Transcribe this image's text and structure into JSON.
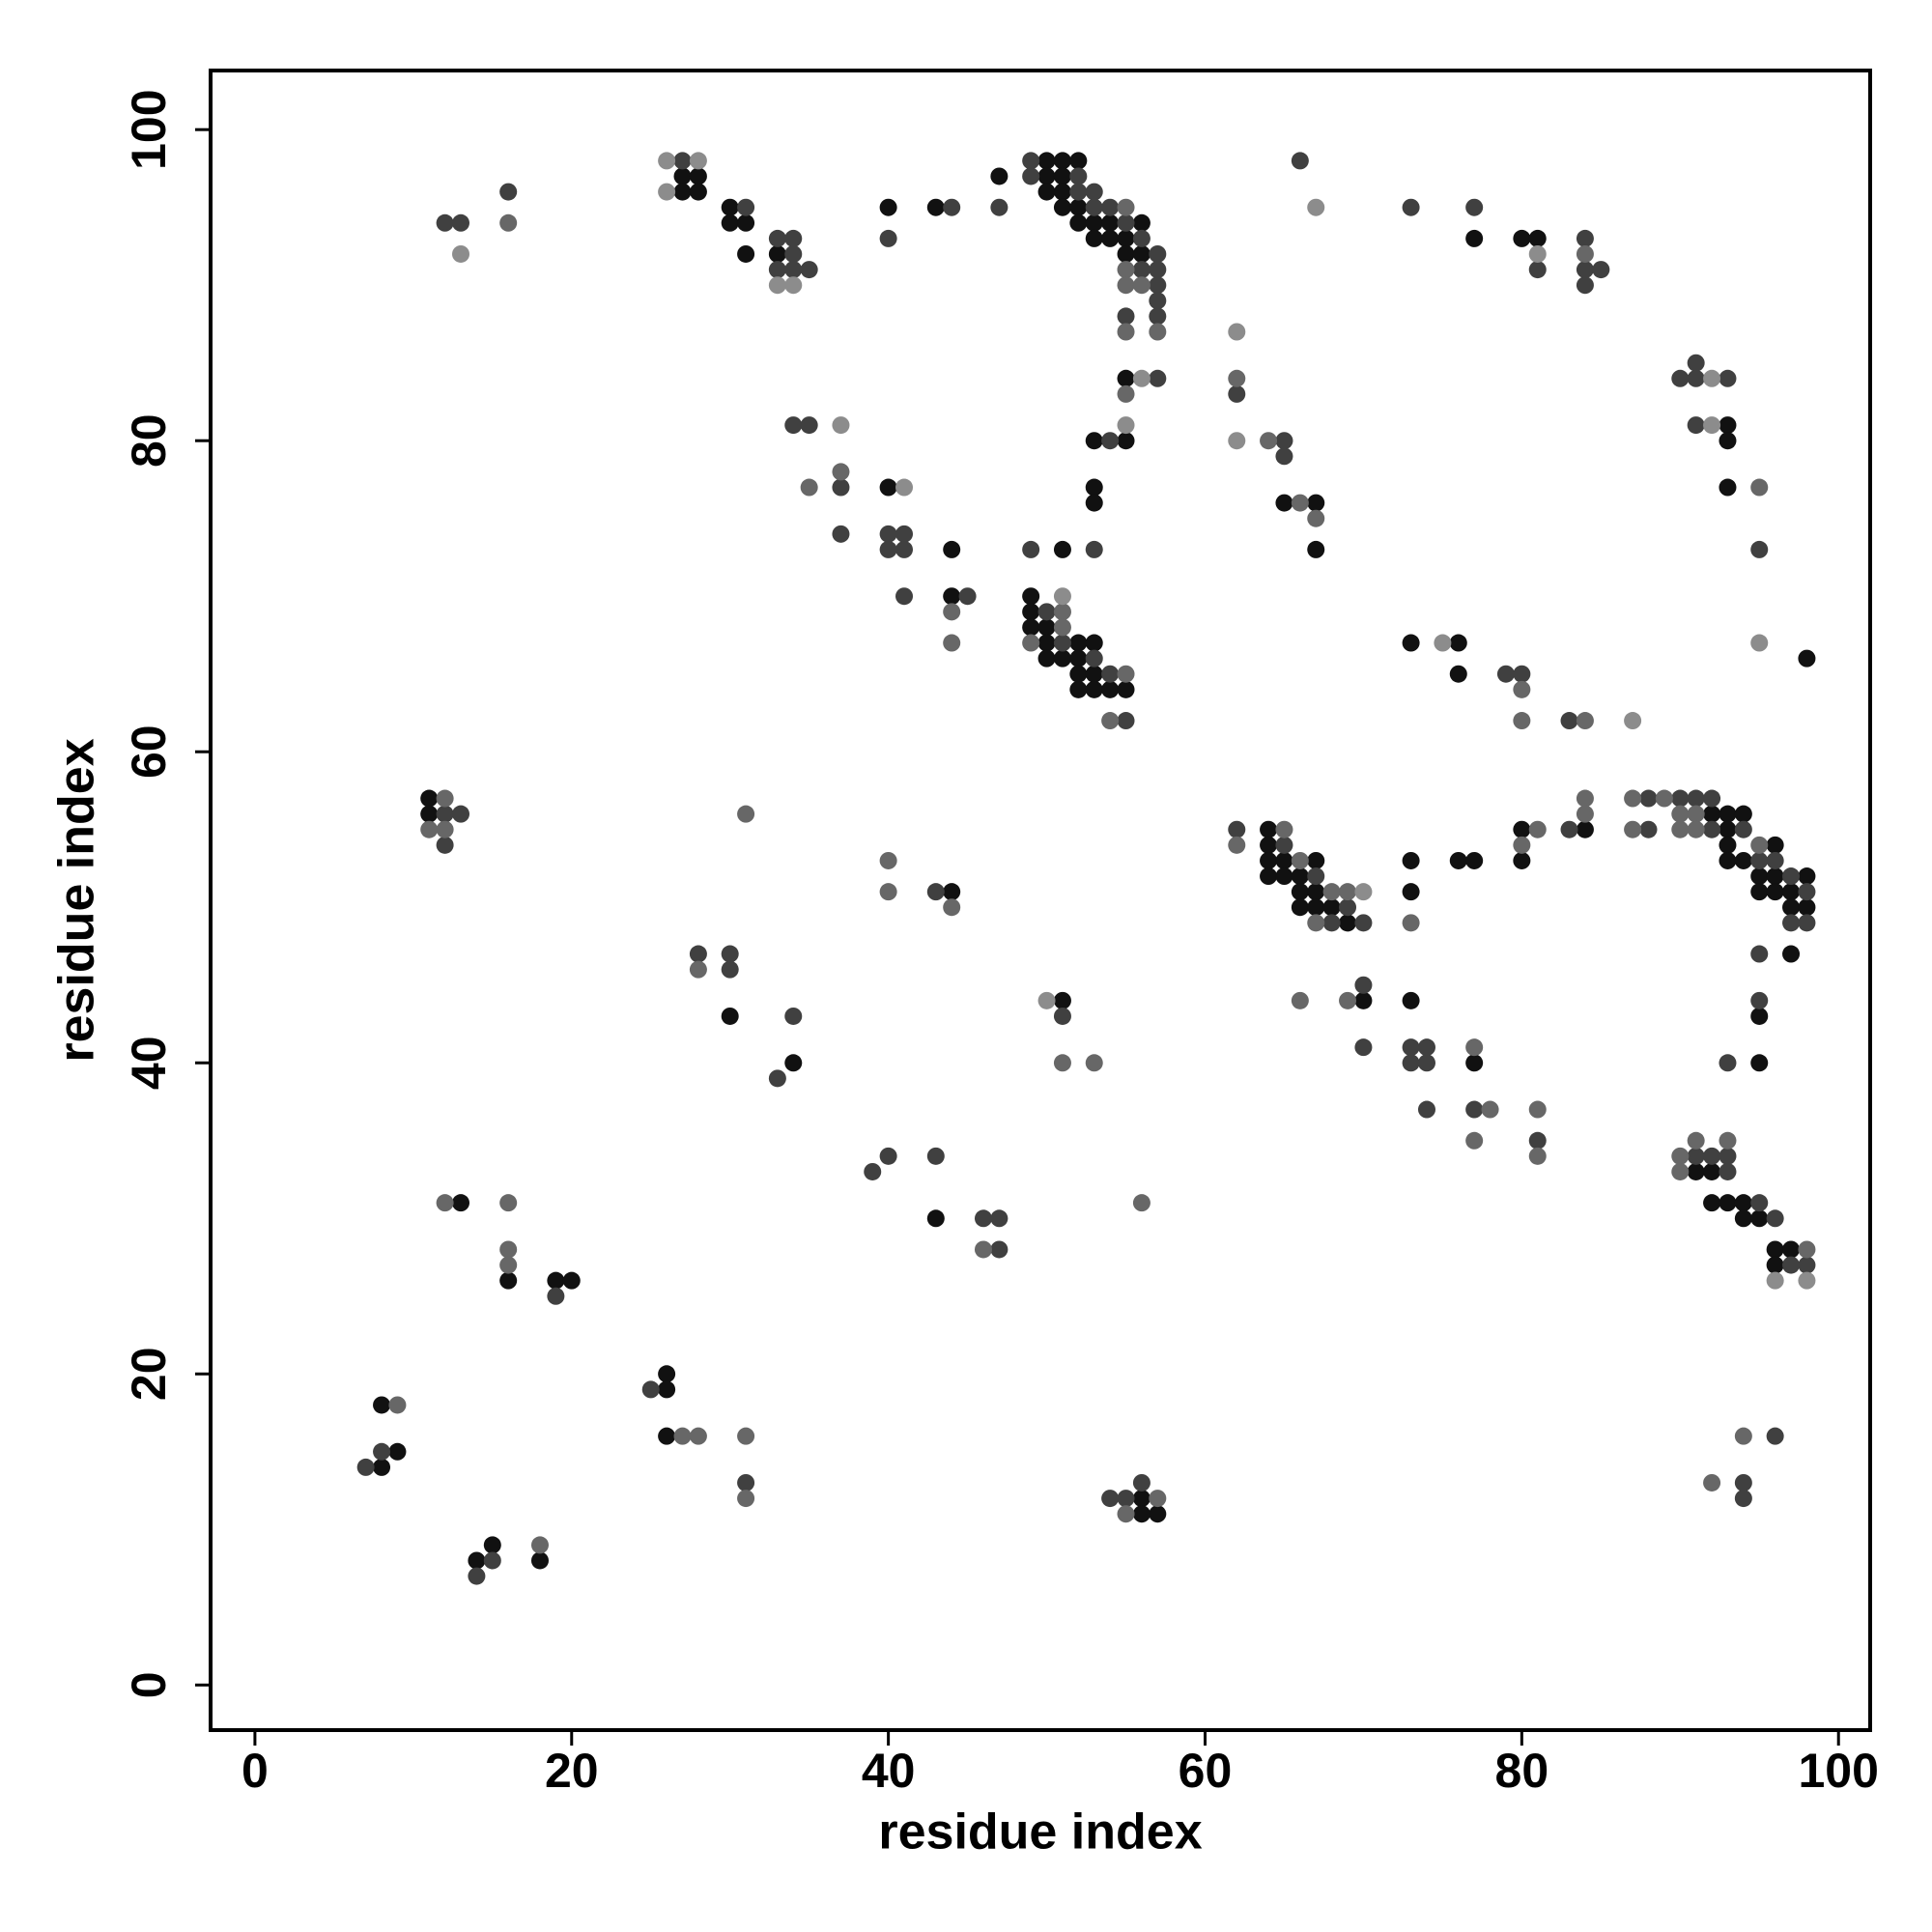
{
  "chart_data": {
    "type": "scatter",
    "xlabel": "residue index",
    "ylabel": "residue index",
    "xlim": [
      -2.8,
      102
    ],
    "ylim": [
      -2.9,
      103.8
    ],
    "xticks": [
      0,
      20,
      40,
      60,
      80,
      100
    ],
    "yticks": [
      0,
      20,
      40,
      60,
      80,
      100
    ],
    "series": [
      {
        "color": "#111111",
        "x": [
          50,
          51,
          52,
          27,
          28,
          50,
          51,
          47,
          27,
          28,
          50,
          51,
          30,
          40,
          43,
          51,
          52,
          30,
          31,
          52,
          53,
          54,
          56,
          53,
          54,
          55,
          77,
          80,
          81,
          31,
          33,
          55,
          56,
          55,
          93,
          53,
          55,
          93,
          40,
          53,
          93,
          53,
          65,
          67,
          44,
          51,
          67,
          44,
          49,
          49,
          49,
          50,
          50,
          52,
          53,
          73,
          76,
          50,
          51,
          52,
          98,
          52,
          53,
          76,
          52,
          53,
          54,
          55,
          11,
          11,
          92,
          93,
          94,
          64,
          80,
          84,
          93,
          64,
          93,
          96,
          64,
          65,
          67,
          73,
          76,
          77,
          80,
          93,
          94,
          64,
          65,
          66,
          95,
          96,
          98,
          44,
          66,
          67,
          73,
          95,
          96,
          97,
          66,
          67,
          68,
          97,
          98,
          69,
          97,
          51,
          70,
          73,
          30,
          95,
          34,
          77,
          95,
          91,
          92,
          13,
          92,
          93,
          94,
          43,
          94,
          95,
          96,
          97,
          96,
          16,
          19,
          20,
          26,
          26,
          8,
          26,
          9,
          8,
          56,
          56,
          57,
          15,
          14,
          18
        ],
        "values": [
          98,
          98,
          98,
          97,
          97,
          97,
          97,
          97,
          96,
          96,
          96,
          96,
          95,
          95,
          95,
          95,
          95,
          94,
          94,
          94,
          94,
          94,
          94,
          93,
          93,
          93,
          93,
          93,
          93,
          92,
          92,
          92,
          92,
          84,
          81,
          80,
          80,
          80,
          77,
          77,
          77,
          76,
          76,
          76,
          73,
          73,
          73,
          70,
          70,
          69,
          68,
          68,
          67,
          67,
          67,
          67,
          67,
          66,
          66,
          66,
          66,
          65,
          65,
          65,
          64,
          64,
          64,
          64,
          57,
          56,
          56,
          56,
          56,
          55,
          55,
          55,
          55,
          54,
          54,
          54,
          53,
          53,
          53,
          53,
          53,
          53,
          53,
          53,
          53,
          52,
          52,
          52,
          52,
          52,
          52,
          51,
          51,
          51,
          51,
          51,
          51,
          51,
          50,
          50,
          50,
          50,
          50,
          49,
          47,
          44,
          44,
          44,
          43,
          43,
          40,
          40,
          40,
          33,
          33,
          31,
          31,
          31,
          31,
          30,
          30,
          30,
          28,
          28,
          27,
          26,
          26,
          26,
          20,
          19,
          18,
          16,
          15,
          14,
          12,
          11,
          11,
          9,
          8,
          8
        ]
      },
      {
        "color": "#404040",
        "x": [
          27,
          49,
          66,
          49,
          52,
          16,
          52,
          53,
          31,
          44,
          47,
          53,
          54,
          73,
          77,
          12,
          13,
          55,
          33,
          34,
          40,
          56,
          84,
          34,
          57,
          33,
          34,
          35,
          56,
          57,
          81,
          84,
          85,
          57,
          84,
          57,
          55,
          57,
          91,
          57,
          90,
          91,
          93,
          62,
          34,
          35,
          91,
          54,
          65,
          65,
          37,
          37,
          40,
          41,
          40,
          41,
          49,
          53,
          95,
          41,
          45,
          50,
          51,
          53,
          54,
          79,
          80,
          55,
          83,
          88,
          90,
          91,
          92,
          12,
          13,
          62,
          83,
          88,
          92,
          94,
          12,
          65,
          95,
          96,
          67,
          97,
          43,
          98,
          69,
          68,
          70,
          97,
          98,
          28,
          30,
          95,
          30,
          70,
          95,
          34,
          51,
          70,
          73,
          74,
          73,
          74,
          93,
          33,
          74,
          77,
          81,
          40,
          43,
          91,
          92,
          93,
          39,
          93,
          95,
          46,
          47,
          96,
          47,
          97,
          98,
          19,
          25,
          96,
          8,
          7,
          31,
          56,
          94,
          54,
          55,
          94,
          15,
          14
        ],
        "values": [
          98,
          98,
          98,
          97,
          97,
          96,
          96,
          96,
          95,
          95,
          95,
          95,
          95,
          95,
          95,
          94,
          94,
          94,
          93,
          93,
          93,
          93,
          93,
          92,
          92,
          91,
          91,
          91,
          91,
          91,
          91,
          91,
          91,
          90,
          90,
          89,
          88,
          88,
          85,
          84,
          84,
          84,
          84,
          83,
          81,
          81,
          81,
          80,
          80,
          79,
          77,
          74,
          74,
          74,
          73,
          73,
          73,
          73,
          73,
          70,
          70,
          69,
          67,
          66,
          65,
          65,
          65,
          62,
          62,
          57,
          57,
          57,
          57,
          56,
          56,
          55,
          55,
          55,
          55,
          55,
          54,
          54,
          53,
          53,
          52,
          52,
          51,
          51,
          50,
          49,
          49,
          49,
          49,
          47,
          47,
          47,
          46,
          45,
          44,
          43,
          43,
          41,
          41,
          41,
          40,
          40,
          40,
          39,
          37,
          37,
          35,
          34,
          34,
          34,
          34,
          34,
          33,
          33,
          31,
          30,
          30,
          30,
          28,
          27,
          27,
          25,
          19,
          16,
          15,
          14,
          13,
          13,
          13,
          12,
          12,
          12,
          8,
          7
        ]
      },
      {
        "color": "#676767",
        "x": [
          55,
          16,
          84,
          55,
          55,
          56,
          55,
          57,
          62,
          55,
          64,
          37,
          35,
          95,
          66,
          67,
          44,
          51,
          51,
          44,
          49,
          55,
          54,
          80,
          84,
          80,
          12,
          84,
          87,
          89,
          31,
          84,
          90,
          91,
          11,
          12,
          65,
          81,
          87,
          90,
          91,
          62,
          80,
          95,
          40,
          66,
          40,
          68,
          69,
          44,
          67,
          73,
          28,
          66,
          69,
          77,
          51,
          53,
          78,
          81,
          77,
          91,
          93,
          81,
          90,
          90,
          12,
          16,
          56,
          16,
          46,
          98,
          16,
          9,
          27,
          28,
          31,
          94,
          92,
          31,
          57,
          55,
          18
        ],
        "values": [
          95,
          94,
          92,
          91,
          90,
          90,
          87,
          87,
          84,
          83,
          80,
          78,
          77,
          77,
          76,
          75,
          69,
          69,
          68,
          67,
          67,
          65,
          62,
          62,
          62,
          64,
          57,
          57,
          57,
          57,
          56,
          56,
          56,
          56,
          55,
          55,
          55,
          55,
          55,
          55,
          55,
          54,
          54,
          54,
          53,
          53,
          51,
          51,
          51,
          50,
          49,
          49,
          46,
          44,
          44,
          41,
          40,
          40,
          37,
          37,
          35,
          35,
          35,
          34,
          34,
          33,
          31,
          31,
          31,
          28,
          28,
          28,
          27,
          18,
          16,
          16,
          16,
          16,
          13,
          12,
          12,
          11,
          9
        ]
      },
      {
        "color": "#8c8c8c",
        "x": [
          26,
          28,
          26,
          67,
          13,
          81,
          33,
          34,
          62,
          56,
          92,
          37,
          55,
          92,
          62,
          41,
          51,
          75,
          95,
          87,
          70,
          50,
          96,
          98
        ],
        "values": [
          98,
          98,
          96,
          95,
          92,
          92,
          90,
          90,
          87,
          84,
          84,
          81,
          81,
          81,
          80,
          77,
          70,
          67,
          67,
          62,
          51,
          44,
          26,
          26
        ]
      }
    ]
  }
}
